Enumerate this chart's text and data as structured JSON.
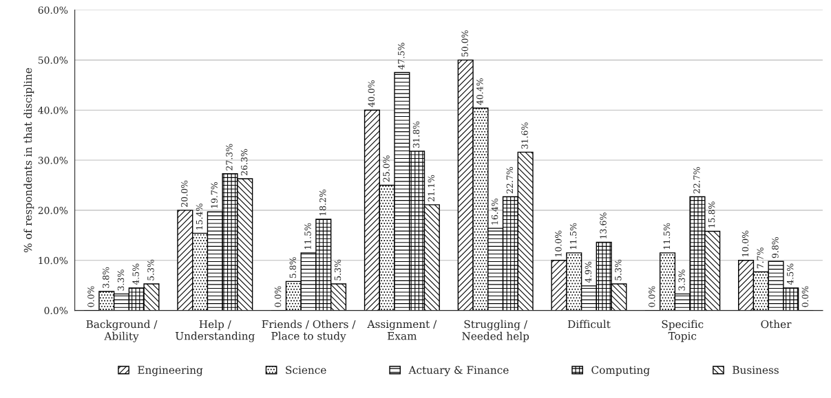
{
  "chart_data": {
    "type": "bar",
    "ylabel": "% of respondents in that discipline",
    "categories": [
      "Background /\nAbility",
      "Help /\nUnderstanding",
      "Friends / Others /\nPlace to study",
      "Assignment /\nExam",
      "Struggling /\nNeeded help",
      "Difficult",
      "Specific\nTopic",
      "Other"
    ],
    "series": [
      {
        "name": "Engineering",
        "color": "#000000",
        "values": [
          0.0,
          20.0,
          0.0,
          40.0,
          50.0,
          10.0,
          0.0,
          10.0
        ],
        "value_labels": [
          "0.0%",
          "20.0%",
          "0.0%",
          "40.0%",
          "50.0%",
          "10.0%",
          "0.0%",
          "10.0%"
        ]
      },
      {
        "name": "Science",
        "color": "#000000",
        "values": [
          3.8,
          15.4,
          5.8,
          25.0,
          40.4,
          11.5,
          11.5,
          7.7
        ],
        "value_labels": [
          "3.8%",
          "15.4%",
          "5.8%",
          "25.0%",
          "40.4%",
          "11.5%",
          "11.5%",
          "7.7%"
        ]
      },
      {
        "name": "Actuary & Finance",
        "color": "#000000",
        "values": [
          3.3,
          19.7,
          11.5,
          47.5,
          16.4,
          4.9,
          3.3,
          9.8
        ],
        "value_labels": [
          "3.3%",
          "19.7%",
          "11.5%",
          "47.5%",
          "16.4%",
          "4.9%",
          "3.3%",
          "9.8%"
        ]
      },
      {
        "name": "Computing",
        "color": "#000000",
        "values": [
          4.5,
          27.3,
          18.2,
          31.8,
          22.7,
          13.6,
          22.7,
          4.5
        ],
        "value_labels": [
          "4.5%",
          "27.3%",
          "18.2%",
          "31.8%",
          "22.7%",
          "13.6%",
          "22.7%",
          "4.5%"
        ]
      },
      {
        "name": "Business",
        "color": "#000000",
        "values": [
          5.3,
          26.3,
          5.3,
          21.1,
          31.6,
          5.3,
          15.8,
          0.0
        ],
        "value_labels": [
          "5.3%",
          "26.3%",
          "5.3%",
          "21.1%",
          "31.6%",
          "5.3%",
          "15.8%",
          "0.0%"
        ]
      }
    ],
    "ylim": [
      0,
      60
    ],
    "yticks": [
      {
        "value": 0,
        "label": "0.0%"
      },
      {
        "value": 10,
        "label": "10.0%"
      },
      {
        "value": 20,
        "label": "20.0%"
      },
      {
        "value": 30,
        "label": "30.0%"
      },
      {
        "value": 40,
        "label": "40.0%"
      },
      {
        "value": 50,
        "label": "50.0%"
      },
      {
        "value": 60,
        "label": "60.0%"
      }
    ],
    "grid": "y",
    "legend": "bottom"
  }
}
